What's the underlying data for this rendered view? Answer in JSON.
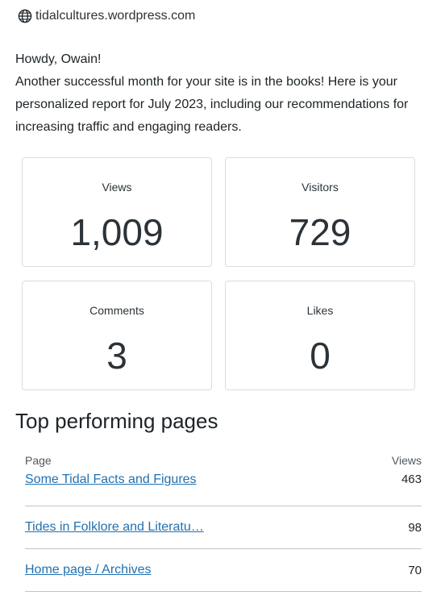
{
  "header": {
    "site": "tidalcultures.wordpress.com",
    "icon": "globe-icon"
  },
  "intro": {
    "greeting": "Howdy, Owain!",
    "message": "Another successful month for your site is in the books! Here is your personalized report for July 2023, including our recommendations for increasing traffic and engaging readers."
  },
  "stats": [
    {
      "label": "Views",
      "value": "1,009"
    },
    {
      "label": "Visitors",
      "value": "729"
    },
    {
      "label": "Comments",
      "value": "3"
    },
    {
      "label": "Likes",
      "value": "0"
    }
  ],
  "top_pages": {
    "title": "Top performing pages",
    "col_page": "Page",
    "col_views": "Views",
    "rows": [
      {
        "page": "Some Tidal Facts and Figures",
        "views": "463"
      },
      {
        "page": "Tides in Folklore and Literatu…",
        "views": "98"
      },
      {
        "page": "Home page / Archives",
        "views": "70"
      }
    ]
  },
  "colors": {
    "link": "#2271b1",
    "text": "#2c3338",
    "border": "#dcdcde"
  }
}
